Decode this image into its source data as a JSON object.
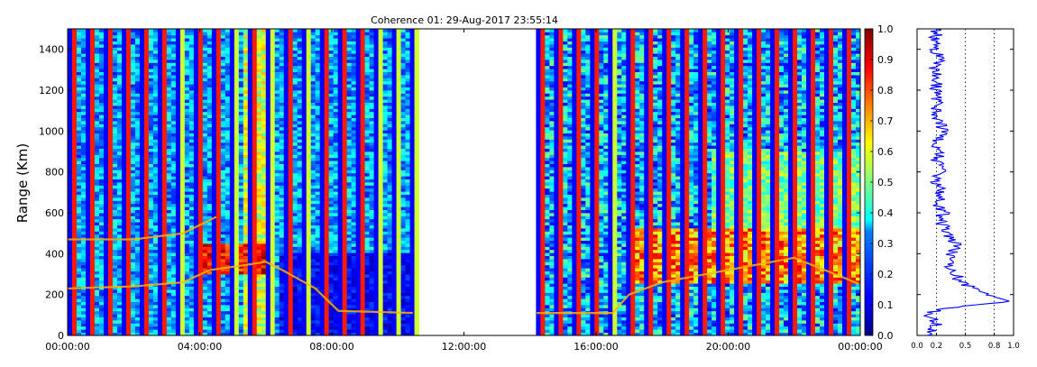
{
  "chart_data": [
    {
      "type": "heatmap",
      "title": "Coherence 01: 29-Aug-2017 23:55:14",
      "xlabel": "",
      "ylabel": "Range (Km)",
      "x_ticks": [
        "00:00:00",
        "04:00:00",
        "08:00:00",
        "12:00:00",
        "16:00:00",
        "20:00:00",
        "00:00:00"
      ],
      "xlim_hours": [
        0,
        24
      ],
      "y_ticks": [
        "0",
        "200",
        "400",
        "600",
        "800",
        "1000",
        "1200",
        "1400"
      ],
      "ylim": [
        0,
        1500
      ],
      "data_gap_hours": [
        10.7,
        14.2
      ],
      "colormap": "jet",
      "colorbar": {
        "range": [
          0.0,
          1.0
        ],
        "ticks": [
          "0.0",
          "0.1",
          "0.2",
          "0.3",
          "0.4",
          "0.5",
          "0.6",
          "0.7",
          "0.8",
          "0.9",
          "1.0"
        ]
      },
      "features": [
        {
          "time_hours": [
            0.0,
            2.0,
            3.5,
            4.5
          ],
          "range_km": [
            470,
            470,
            500,
            580
          ]
        },
        {
          "time_hours": [
            0.0,
            2.0,
            3.5,
            4.3,
            5.2,
            6.0,
            6.5,
            7.5,
            8.2,
            10.5
          ],
          "range_km": [
            230,
            240,
            260,
            320,
            340,
            360,
            320,
            230,
            120,
            110
          ]
        },
        {
          "time_hours": [
            14.2,
            16.5,
            17.0,
            18.0,
            20.0,
            22.0,
            24.0
          ],
          "range_km": [
            110,
            110,
            200,
            260,
            320,
            380,
            250
          ]
        }
      ]
    },
    {
      "type": "line",
      "title": "",
      "x_ticks": [
        "0.0",
        "0.2",
        "0.5",
        "0.8",
        "1.0"
      ],
      "xlim": [
        0,
        1.0
      ],
      "ylim": [
        0,
        1500
      ],
      "grid_x": [
        0.2,
        0.5,
        0.8
      ],
      "series": [
        {
          "color": "#0000ff",
          "range_km": [
            0,
            50,
            100,
            130,
            150,
            165,
            180,
            200,
            230,
            260,
            300,
            330,
            360,
            400,
            450,
            500,
            560,
            600,
            650,
            700,
            760,
            800,
            850,
            900,
            950,
            1000,
            1050,
            1100,
            1150,
            1200,
            1250,
            1300,
            1350,
            1400,
            1450,
            1500
          ],
          "values": [
            0.15,
            0.2,
            0.12,
            0.22,
            0.6,
            0.98,
            0.88,
            0.72,
            0.6,
            0.45,
            0.4,
            0.3,
            0.42,
            0.36,
            0.4,
            0.3,
            0.25,
            0.27,
            0.22,
            0.25,
            0.2,
            0.24,
            0.2,
            0.22,
            0.2,
            0.27,
            0.22,
            0.2,
            0.22,
            0.18,
            0.2,
            0.18,
            0.22,
            0.2,
            0.19,
            0.2
          ]
        }
      ]
    }
  ]
}
